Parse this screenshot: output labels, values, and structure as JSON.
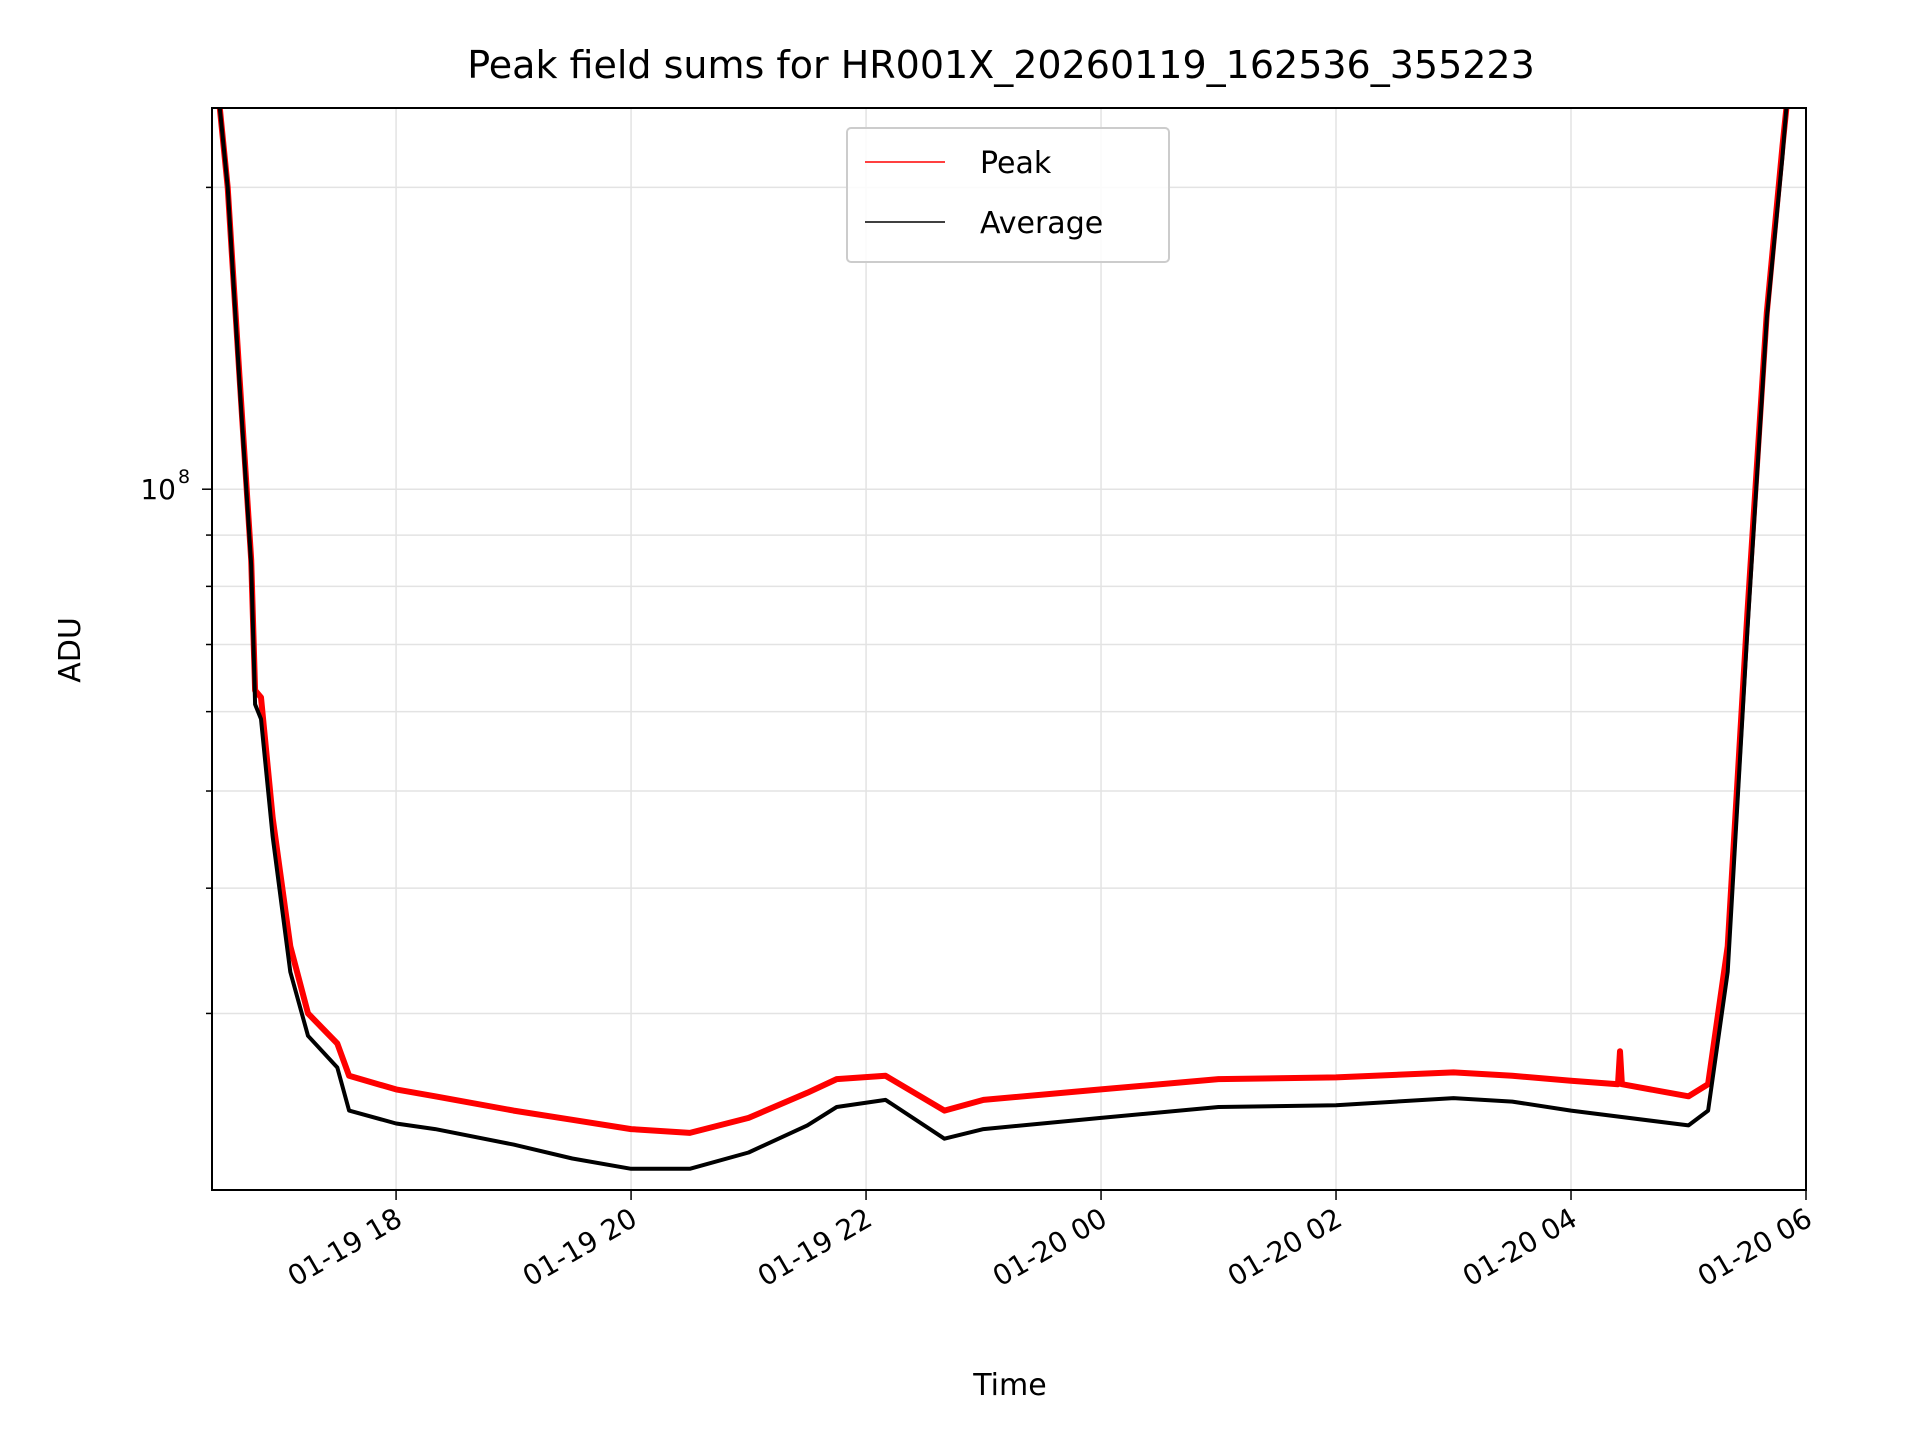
{
  "chart_data": {
    "type": "line",
    "title": "Peak field sums for HR001X_20260119_162536_355223",
    "xlabel": "Time",
    "ylabel": "ADU",
    "y_scale": "log",
    "grid": true,
    "legend_position": "upper center",
    "x_range": [
      "2026-01-19T16:26",
      "2026-01-20T06:00"
    ],
    "y_range": [
      20000000,
      240000000
    ],
    "x_ticks": [
      {
        "t": "2026-01-19T18:00",
        "label": "01-19 18"
      },
      {
        "t": "2026-01-19T20:00",
        "label": "01-19 20"
      },
      {
        "t": "2026-01-19T22:00",
        "label": "01-19 22"
      },
      {
        "t": "2026-01-20T00:00",
        "label": "01-20 00"
      },
      {
        "t": "2026-01-20T02:00",
        "label": "01-20 02"
      },
      {
        "t": "2026-01-20T04:00",
        "label": "01-20 04"
      },
      {
        "t": "2026-01-20T06:00",
        "label": "01-20 06"
      }
    ],
    "y_major_ticks": [
      {
        "value": 100000000,
        "label": "10",
        "sup": "8"
      }
    ],
    "y_minor_ticks": [
      30000000,
      40000000,
      50000000,
      60000000,
      70000000,
      80000000,
      90000000,
      200000000
    ],
    "series": [
      {
        "name": "Peak",
        "color": "#ff0000",
        "points": [
          [
            "2026-01-19T16:30",
            240000000
          ],
          [
            "2026-01-19T16:34",
            200000000
          ],
          [
            "2026-01-19T16:40",
            130000000
          ],
          [
            "2026-01-19T16:46",
            85000000
          ],
          [
            "2026-01-19T16:48",
            63000000
          ],
          [
            "2026-01-19T16:51",
            62000000
          ],
          [
            "2026-01-19T16:57",
            47000000
          ],
          [
            "2026-01-19T17:06",
            35000000
          ],
          [
            "2026-01-19T17:15",
            30000000
          ],
          [
            "2026-01-19T17:30",
            28000000
          ],
          [
            "2026-01-19T17:36",
            26000000
          ],
          [
            "2026-01-19T18:00",
            25200000
          ],
          [
            "2026-01-19T18:20",
            24800000
          ],
          [
            "2026-01-19T19:00",
            24000000
          ],
          [
            "2026-01-19T19:30",
            23500000
          ],
          [
            "2026-01-19T20:00",
            23000000
          ],
          [
            "2026-01-19T20:30",
            22800000
          ],
          [
            "2026-01-19T21:00",
            23600000
          ],
          [
            "2026-01-19T21:30",
            25000000
          ],
          [
            "2026-01-19T21:45",
            25800000
          ],
          [
            "2026-01-19T22:10",
            26000000
          ],
          [
            "2026-01-19T22:40",
            24000000
          ],
          [
            "2026-01-19T23:00",
            24600000
          ],
          [
            "2026-01-20T00:00",
            25200000
          ],
          [
            "2026-01-20T01:00",
            25800000
          ],
          [
            "2026-01-20T02:00",
            25900000
          ],
          [
            "2026-01-20T03:00",
            26200000
          ],
          [
            "2026-01-20T03:30",
            26000000
          ],
          [
            "2026-01-20T04:00",
            25700000
          ],
          [
            "2026-01-20T04:24",
            25500000
          ],
          [
            "2026-01-20T04:25",
            27500000
          ],
          [
            "2026-01-20T04:26",
            25500000
          ],
          [
            "2026-01-20T05:00",
            24800000
          ],
          [
            "2026-01-20T05:10",
            25500000
          ],
          [
            "2026-01-20T05:20",
            35000000
          ],
          [
            "2026-01-20T05:30",
            75000000
          ],
          [
            "2026-01-20T05:40",
            150000000
          ],
          [
            "2026-01-20T05:48",
            220000000
          ],
          [
            "2026-01-20T05:50",
            240000000
          ]
        ]
      },
      {
        "name": "Average",
        "color": "#000000",
        "points": [
          [
            "2026-01-19T16:30",
            240000000
          ],
          [
            "2026-01-19T16:34",
            200000000
          ],
          [
            "2026-01-19T16:40",
            128000000
          ],
          [
            "2026-01-19T16:46",
            84000000
          ],
          [
            "2026-01-19T16:48",
            61000000
          ],
          [
            "2026-01-19T16:51",
            59000000
          ],
          [
            "2026-01-19T16:57",
            45000000
          ],
          [
            "2026-01-19T17:06",
            33000000
          ],
          [
            "2026-01-19T17:15",
            28500000
          ],
          [
            "2026-01-19T17:30",
            26500000
          ],
          [
            "2026-01-19T17:36",
            24000000
          ],
          [
            "2026-01-19T18:00",
            23300000
          ],
          [
            "2026-01-19T18:20",
            23000000
          ],
          [
            "2026-01-19T19:00",
            22200000
          ],
          [
            "2026-01-19T19:30",
            21500000
          ],
          [
            "2026-01-19T20:00",
            21000000
          ],
          [
            "2026-01-19T20:30",
            21000000
          ],
          [
            "2026-01-19T21:00",
            21800000
          ],
          [
            "2026-01-19T21:30",
            23200000
          ],
          [
            "2026-01-19T21:45",
            24200000
          ],
          [
            "2026-01-19T22:10",
            24600000
          ],
          [
            "2026-01-19T22:40",
            22500000
          ],
          [
            "2026-01-19T23:00",
            23000000
          ],
          [
            "2026-01-20T00:00",
            23600000
          ],
          [
            "2026-01-20T01:00",
            24200000
          ],
          [
            "2026-01-20T02:00",
            24300000
          ],
          [
            "2026-01-20T03:00",
            24700000
          ],
          [
            "2026-01-20T03:30",
            24500000
          ],
          [
            "2026-01-20T04:00",
            24000000
          ],
          [
            "2026-01-20T05:00",
            23200000
          ],
          [
            "2026-01-20T05:10",
            24000000
          ],
          [
            "2026-01-20T05:20",
            33000000
          ],
          [
            "2026-01-20T05:30",
            72000000
          ],
          [
            "2026-01-20T05:40",
            148000000
          ],
          [
            "2026-01-20T05:48",
            215000000
          ],
          [
            "2026-01-20T05:50",
            240000000
          ]
        ]
      }
    ]
  }
}
